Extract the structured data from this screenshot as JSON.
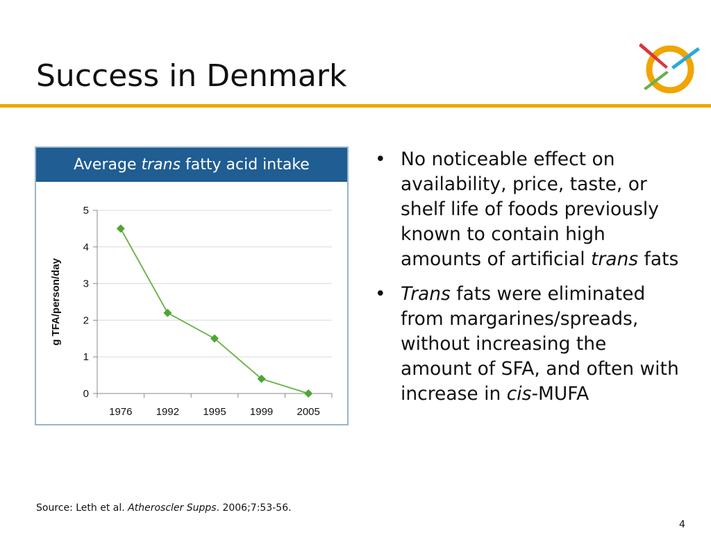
{
  "slide": {
    "title": "Success in Denmark",
    "page_number": "4",
    "source": {
      "prefix": "Source: Leth et al. ",
      "journal": "Atheroscler Supps",
      "suffix": ". 2006;7:53-56."
    }
  },
  "chart_data": {
    "type": "line",
    "title": {
      "before": "Average ",
      "italic": "trans",
      "after": " fatty acid intake"
    },
    "xlabel": "",
    "ylabel": "g TFA/person/day",
    "categories": [
      "1976",
      "1992",
      "1995",
      "1999",
      "2005"
    ],
    "series": [
      {
        "values": [
          4.5,
          2.2,
          1.5,
          0.4,
          0.0
        ]
      }
    ],
    "ylim": [
      0,
      5
    ],
    "yticks": [
      0,
      1,
      2,
      3,
      4,
      5
    ],
    "grid": true,
    "legend": "none",
    "colors": {
      "line": "#70b651",
      "marker": "#4ea635",
      "header_bg": "#1f5d92",
      "grid": "#d9d9d9"
    }
  },
  "bullets": [
    {
      "before": "No noticeable effect on availability, price, taste, or shelf life of foods previously known to contain high amounts of artificial ",
      "italic": "trans",
      "after": " fats"
    },
    {
      "italic_lead": "Trans",
      "text": " fats were eliminated from margarines/spreads, without increasing the amount of SFA, and often with increase in ",
      "italic": "cis",
      "after": "-MUFA"
    }
  ],
  "colors": {
    "accent_rule": "#f0a500",
    "logo_ring": "#f0a500",
    "logo_red": "#d9363e",
    "logo_blue": "#29a8e0",
    "logo_green": "#6ab04c"
  }
}
